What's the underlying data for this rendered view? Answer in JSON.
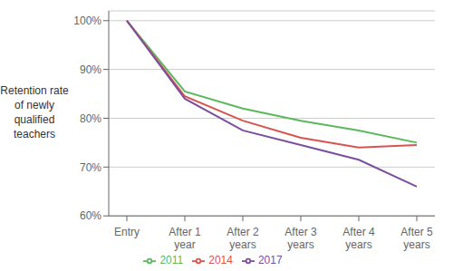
{
  "chart_data": {
    "type": "line",
    "ylabel": "Retention rate\nof newly\nqualified\nteachers",
    "categories": [
      "Entry",
      "After 1\nyear",
      "After 2\nyears",
      "After 3\nyears",
      "After 4\nyears",
      "After 5\nyears"
    ],
    "series": [
      {
        "name": "2011",
        "color": "#5cb85c",
        "values": [
          100,
          85.5,
          82.0,
          79.5,
          77.5,
          75.0
        ]
      },
      {
        "name": "2014",
        "color": "#d9534f",
        "values": [
          100,
          84.5,
          79.5,
          76.0,
          74.0,
          74.5
        ]
      },
      {
        "name": "2017",
        "color": "#7b4f9e",
        "values": [
          100,
          84.0,
          77.5,
          74.5,
          71.5,
          66.0
        ]
      }
    ],
    "ylim": [
      60,
      102
    ],
    "yticks": [
      {
        "value": 60,
        "label": "60%"
      },
      {
        "value": 70,
        "label": "70%"
      },
      {
        "value": 80,
        "label": "80%"
      },
      {
        "value": 90,
        "label": "90%"
      },
      {
        "value": 100,
        "label": "100%"
      }
    ],
    "grid": true,
    "legend": "bottom"
  }
}
